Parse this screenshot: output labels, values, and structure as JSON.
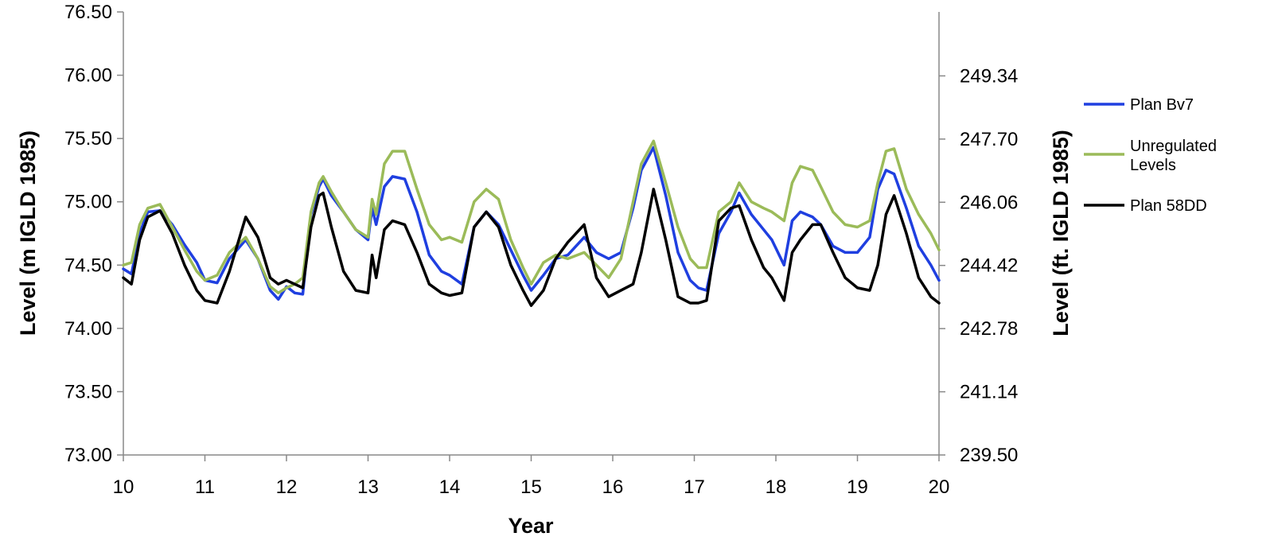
{
  "chart_data": {
    "type": "line",
    "xlabel": "Year",
    "ylabel_left": "Level (m IGLD 1985)",
    "ylabel_right": "Level (ft. IGLD 1985)",
    "xlim": [
      10,
      20
    ],
    "ylim_left": [
      73.0,
      76.5
    ],
    "ylim_right": [
      239.5,
      251.0
    ],
    "x_ticks": [
      "10",
      "11",
      "12",
      "13",
      "14",
      "15",
      "16",
      "17",
      "18",
      "19",
      "20"
    ],
    "y_ticks_left": [
      "73.00",
      "73.50",
      "74.00",
      "74.50",
      "75.00",
      "75.50",
      "76.00",
      "76.50"
    ],
    "y_ticks_right": [
      "239.50",
      "241.14",
      "242.78",
      "244.42",
      "246.06",
      "247.70",
      "249.34"
    ],
    "grid": false,
    "legend_position": "right",
    "series": [
      {
        "name": "Plan Bv7",
        "color": "#1f3fe0",
        "x": [
          10.0,
          10.1,
          10.2,
          10.3,
          10.45,
          10.6,
          10.75,
          10.9,
          11.0,
          11.15,
          11.3,
          11.5,
          11.65,
          11.8,
          11.9,
          12.0,
          12.1,
          12.2,
          12.3,
          12.4,
          12.45,
          12.55,
          12.7,
          12.85,
          13.0,
          13.05,
          13.1,
          13.2,
          13.3,
          13.45,
          13.6,
          13.75,
          13.9,
          14.0,
          14.15,
          14.3,
          14.45,
          14.6,
          14.75,
          14.9,
          15.0,
          15.15,
          15.3,
          15.45,
          15.65,
          15.8,
          15.95,
          16.1,
          16.25,
          16.35,
          16.5,
          16.65,
          16.8,
          16.95,
          17.05,
          17.15,
          17.3,
          17.45,
          17.55,
          17.7,
          17.85,
          17.95,
          18.1,
          18.2,
          18.3,
          18.45,
          18.55,
          18.7,
          18.85,
          19.0,
          19.15,
          19.25,
          19.35,
          19.45,
          19.6,
          19.75,
          19.9,
          20.0
        ],
        "y": [
          74.47,
          74.43,
          74.75,
          74.92,
          74.93,
          74.82,
          74.66,
          74.52,
          74.38,
          74.36,
          74.55,
          74.7,
          74.55,
          74.3,
          74.23,
          74.33,
          74.28,
          74.27,
          74.9,
          75.12,
          75.18,
          75.05,
          74.92,
          74.78,
          74.7,
          74.95,
          74.82,
          75.12,
          75.2,
          75.18,
          74.92,
          74.58,
          74.45,
          74.42,
          74.35,
          74.8,
          74.92,
          74.82,
          74.62,
          74.42,
          74.3,
          74.42,
          74.55,
          74.58,
          74.72,
          74.6,
          74.55,
          74.6,
          74.95,
          75.25,
          75.43,
          75.05,
          74.6,
          74.38,
          74.32,
          74.3,
          74.75,
          74.92,
          75.07,
          74.9,
          74.78,
          74.7,
          74.5,
          74.85,
          74.92,
          74.88,
          74.82,
          74.65,
          74.6,
          74.6,
          74.72,
          75.1,
          75.25,
          75.22,
          74.95,
          74.65,
          74.5,
          74.38
        ]
      },
      {
        "name": "Unregulated Levels",
        "color": "#9bbb59",
        "x": [
          10.0,
          10.1,
          10.2,
          10.3,
          10.45,
          10.6,
          10.75,
          10.9,
          11.0,
          11.15,
          11.3,
          11.5,
          11.65,
          11.8,
          11.9,
          12.0,
          12.1,
          12.2,
          12.3,
          12.4,
          12.45,
          12.55,
          12.7,
          12.85,
          13.0,
          13.05,
          13.1,
          13.2,
          13.3,
          13.45,
          13.6,
          13.75,
          13.9,
          14.0,
          14.15,
          14.3,
          14.45,
          14.6,
          14.75,
          14.9,
          15.0,
          15.15,
          15.3,
          15.45,
          15.65,
          15.8,
          15.95,
          16.1,
          16.25,
          16.35,
          16.5,
          16.65,
          16.8,
          16.95,
          17.05,
          17.15,
          17.3,
          17.45,
          17.55,
          17.7,
          17.85,
          17.95,
          18.1,
          18.2,
          18.3,
          18.45,
          18.55,
          18.7,
          18.85,
          19.0,
          19.15,
          19.25,
          19.35,
          19.45,
          19.6,
          19.75,
          19.9,
          20.0
        ],
        "y": [
          74.5,
          74.52,
          74.82,
          74.95,
          74.98,
          74.8,
          74.62,
          74.45,
          74.38,
          74.42,
          74.6,
          74.72,
          74.55,
          74.33,
          74.28,
          74.32,
          74.35,
          74.4,
          74.92,
          75.15,
          75.2,
          75.08,
          74.92,
          74.78,
          74.72,
          75.02,
          74.9,
          75.3,
          75.4,
          75.4,
          75.1,
          74.82,
          74.7,
          74.72,
          74.68,
          75.0,
          75.1,
          75.02,
          74.7,
          74.48,
          74.35,
          74.52,
          74.58,
          74.55,
          74.6,
          74.5,
          74.4,
          74.55,
          75.0,
          75.3,
          75.48,
          75.15,
          74.8,
          74.55,
          74.48,
          74.48,
          74.92,
          75.0,
          75.15,
          75.0,
          74.95,
          74.92,
          74.85,
          75.15,
          75.28,
          75.25,
          75.12,
          74.92,
          74.82,
          74.8,
          74.85,
          75.15,
          75.4,
          75.42,
          75.1,
          74.9,
          74.75,
          74.62
        ]
      },
      {
        "name": "Plan 58DD",
        "color": "#000000",
        "x": [
          10.0,
          10.1,
          10.2,
          10.3,
          10.45,
          10.6,
          10.75,
          10.9,
          11.0,
          11.15,
          11.3,
          11.5,
          11.65,
          11.8,
          11.9,
          12.0,
          12.1,
          12.2,
          12.3,
          12.4,
          12.45,
          12.55,
          12.7,
          12.85,
          13.0,
          13.05,
          13.1,
          13.2,
          13.3,
          13.45,
          13.6,
          13.75,
          13.9,
          14.0,
          14.15,
          14.3,
          14.45,
          14.6,
          14.75,
          14.9,
          15.0,
          15.15,
          15.3,
          15.45,
          15.65,
          15.8,
          15.95,
          16.1,
          16.25,
          16.35,
          16.5,
          16.65,
          16.8,
          16.95,
          17.05,
          17.15,
          17.3,
          17.45,
          17.55,
          17.7,
          17.85,
          17.95,
          18.1,
          18.2,
          18.3,
          18.45,
          18.55,
          18.7,
          18.85,
          19.0,
          19.15,
          19.25,
          19.35,
          19.45,
          19.6,
          19.75,
          19.9,
          20.0
        ],
        "y": [
          74.4,
          74.35,
          74.7,
          74.88,
          74.93,
          74.75,
          74.5,
          74.3,
          74.22,
          74.2,
          74.45,
          74.88,
          74.72,
          74.4,
          74.35,
          74.38,
          74.35,
          74.32,
          74.8,
          75.05,
          75.07,
          74.8,
          74.45,
          74.3,
          74.28,
          74.58,
          74.4,
          74.78,
          74.85,
          74.82,
          74.6,
          74.35,
          74.28,
          74.26,
          74.28,
          74.8,
          74.92,
          74.8,
          74.5,
          74.3,
          74.18,
          74.3,
          74.55,
          74.68,
          74.82,
          74.4,
          74.25,
          74.3,
          74.35,
          74.6,
          75.1,
          74.7,
          74.25,
          74.2,
          74.2,
          74.22,
          74.85,
          74.95,
          74.97,
          74.7,
          74.48,
          74.4,
          74.22,
          74.6,
          74.7,
          74.82,
          74.82,
          74.6,
          74.4,
          74.32,
          74.3,
          74.5,
          74.9,
          75.05,
          74.75,
          74.4,
          74.25,
          74.2
        ]
      }
    ]
  }
}
